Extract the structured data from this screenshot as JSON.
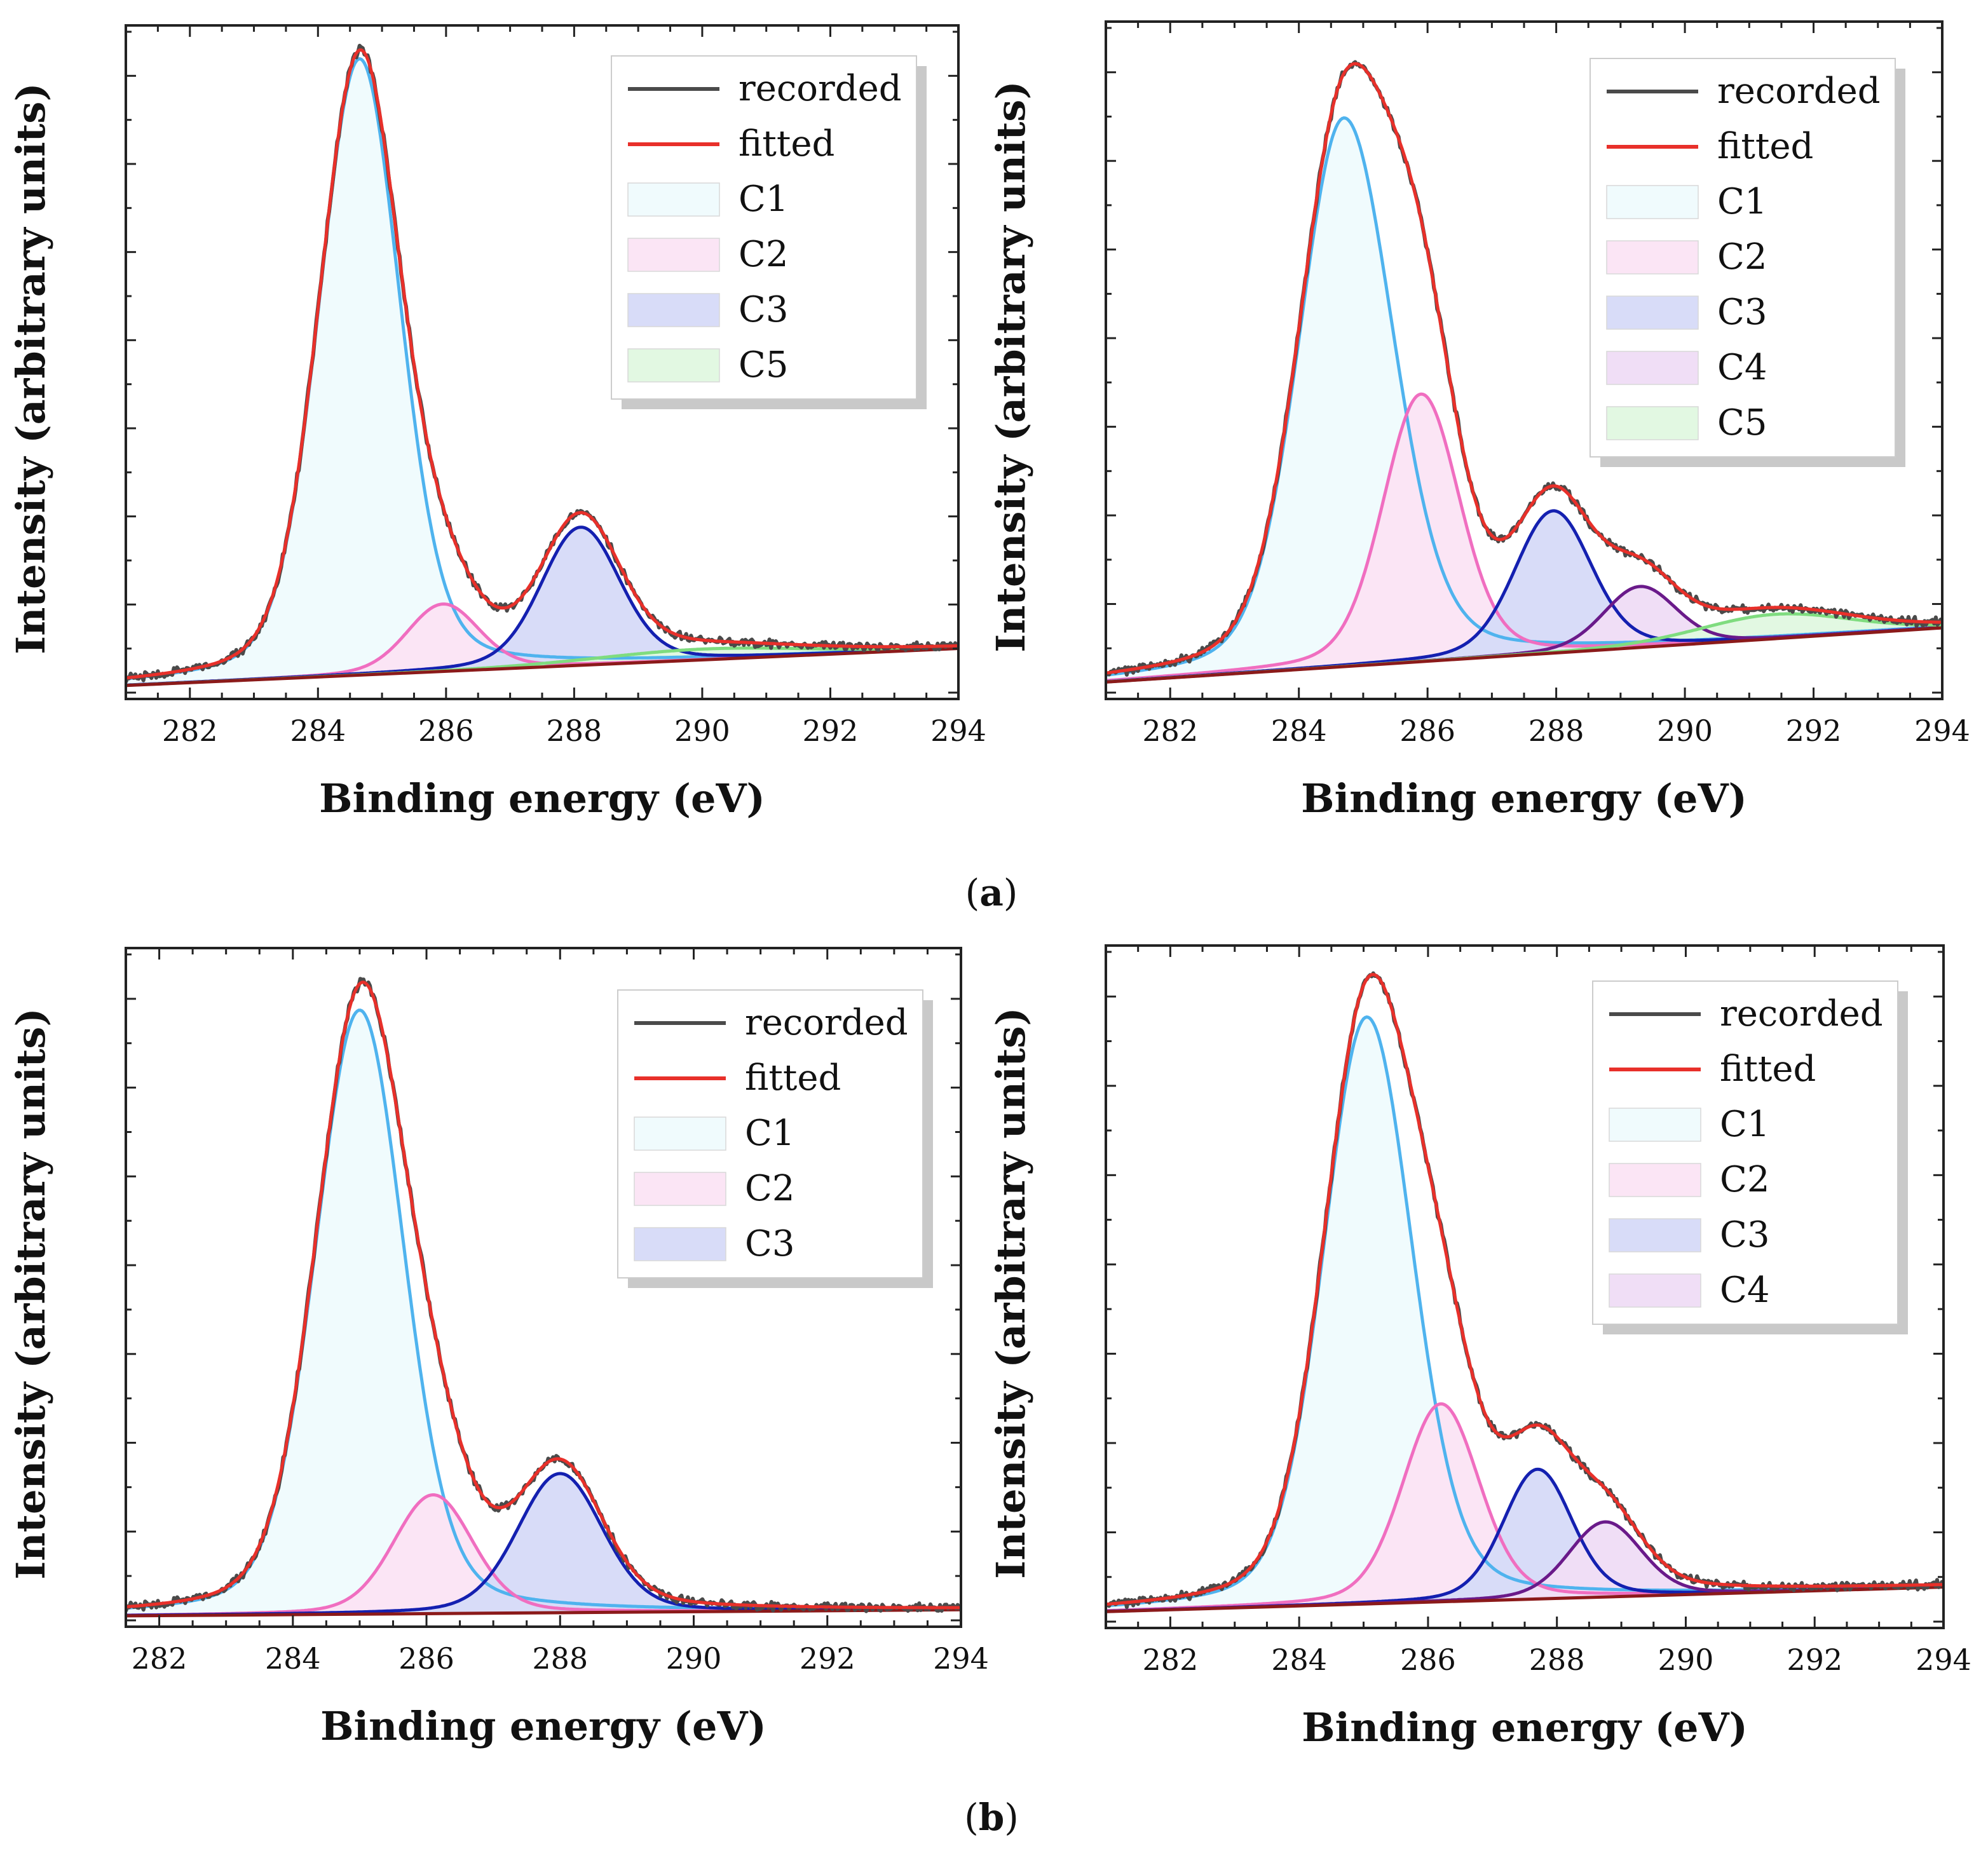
{
  "figure": {
    "caption_a": "a",
    "caption_b": "b"
  },
  "colors": {
    "recorded": "#4a4a4a",
    "fitted": "#e8302a",
    "baseline": "#8b1a1a",
    "C1": {
      "line": "#4fb3ee",
      "fill": "#f0fbfd"
    },
    "C2": {
      "line": "#f06ec0",
      "fill": "#fbe5f5"
    },
    "C3": {
      "line": "#1420b0",
      "fill": "#d8dcf8"
    },
    "C4": {
      "line": "#6a1a8a",
      "fill": "#f0def6"
    },
    "C5": {
      "line": "#7fdc7f",
      "fill": "#e2f8e2"
    }
  },
  "chart_data": [
    {
      "type": "line",
      "panel": "a-left",
      "xlabel": "Binding energy (eV)",
      "ylabel": "Intensity (arbitrary units)",
      "xlim": [
        281,
        294
      ],
      "ylim": [
        0,
        100
      ],
      "xticks": [
        282,
        284,
        286,
        288,
        290,
        292,
        294
      ],
      "y_minor_ticks": 15,
      "baseline": [
        [
          281,
          2.0
        ],
        [
          294,
          7.5
        ]
      ],
      "components": [
        {
          "name": "C1",
          "center": 284.65,
          "height": 91.5,
          "sigma": 0.62,
          "tail": 1.0
        },
        {
          "name": "C2",
          "center": 285.95,
          "height": 10.0,
          "sigma": 0.55,
          "tail": 1.0
        },
        {
          "name": "C3",
          "center": 288.1,
          "height": 20.5,
          "sigma": 0.6,
          "tail": 1.0
        },
        {
          "name": "C5",
          "center": 290.0,
          "height": 1.6,
          "sigma": 1.6,
          "tail": 1.0
        }
      ],
      "legend": {
        "position": "top-right",
        "entries": [
          {
            "label": "recorded",
            "kind": "line",
            "key": "recorded"
          },
          {
            "label": "fitted",
            "kind": "line",
            "key": "fitted"
          },
          {
            "label": "C1",
            "kind": "box",
            "key": "C1"
          },
          {
            "label": "C2",
            "kind": "box",
            "key": "C2"
          },
          {
            "label": "C3",
            "kind": "box",
            "key": "C3"
          },
          {
            "label": "C5",
            "kind": "box",
            "key": "C5"
          }
        ]
      }
    },
    {
      "type": "line",
      "panel": "a-right",
      "xlabel": "Binding energy (eV)",
      "ylabel": "Intensity (arbitrary units)",
      "xlim": [
        281,
        294
      ],
      "ylim": [
        0,
        100
      ],
      "xticks": [
        282,
        284,
        286,
        288,
        290,
        292,
        294
      ],
      "y_minor_ticks": 15,
      "baseline": [
        [
          281,
          2.5
        ],
        [
          294,
          10.5
        ]
      ],
      "components": [
        {
          "name": "C1",
          "center": 284.7,
          "height": 81.0,
          "sigma": 0.68,
          "tail": 1.1
        },
        {
          "name": "C2",
          "center": 285.9,
          "height": 39.5,
          "sigma": 0.58,
          "tail": 1.0
        },
        {
          "name": "C3",
          "center": 287.95,
          "height": 21.0,
          "sigma": 0.58,
          "tail": 1.0
        },
        {
          "name": "C4",
          "center": 289.3,
          "height": 9.0,
          "sigma": 0.55,
          "tail": 1.0
        },
        {
          "name": "C5",
          "center": 291.4,
          "height": 3.6,
          "sigma": 1.15,
          "tail": 1.0
        }
      ],
      "legend": {
        "position": "top-right",
        "entries": [
          {
            "label": "recorded",
            "kind": "line",
            "key": "recorded"
          },
          {
            "label": "fitted",
            "kind": "line",
            "key": "fitted"
          },
          {
            "label": "C1",
            "kind": "box",
            "key": "C1"
          },
          {
            "label": "C2",
            "kind": "box",
            "key": "C2"
          },
          {
            "label": "C3",
            "kind": "box",
            "key": "C3"
          },
          {
            "label": "C4",
            "kind": "box",
            "key": "C4"
          },
          {
            "label": "C5",
            "kind": "box",
            "key": "C5"
          }
        ]
      }
    },
    {
      "type": "line",
      "panel": "b-left",
      "xlabel": "Binding energy (eV)",
      "ylabel": "Intensity (arbitrary units)",
      "xlim": [
        281.5,
        294
      ],
      "ylim": [
        0,
        100
      ],
      "xticks": [
        282,
        284,
        286,
        288,
        290,
        292,
        294
      ],
      "y_minor_ticks": 15,
      "baseline": [
        [
          281.5,
          1.6
        ],
        [
          294,
          2.5
        ]
      ],
      "components": [
        {
          "name": "C1",
          "center": 285.0,
          "height": 89.0,
          "sigma": 0.65,
          "tail": 1.0
        },
        {
          "name": "C2",
          "center": 286.1,
          "height": 17.5,
          "sigma": 0.58,
          "tail": 1.0
        },
        {
          "name": "C3",
          "center": 288.0,
          "height": 20.5,
          "sigma": 0.62,
          "tail": 1.0
        }
      ],
      "legend": {
        "position": "top-right",
        "entries": [
          {
            "label": "recorded",
            "kind": "line",
            "key": "recorded"
          },
          {
            "label": "fitted",
            "kind": "line",
            "key": "fitted"
          },
          {
            "label": "C1",
            "kind": "box",
            "key": "C1"
          },
          {
            "label": "C2",
            "kind": "box",
            "key": "C2"
          },
          {
            "label": "C3",
            "kind": "box",
            "key": "C3"
          }
        ]
      }
    },
    {
      "type": "line",
      "panel": "b-right",
      "xlabel": "Binding energy (eV)",
      "ylabel": "Intensity (arbitrary units)",
      "xlim": [
        281,
        294
      ],
      "ylim": [
        0,
        100
      ],
      "xticks": [
        282,
        284,
        286,
        288,
        290,
        292,
        294
      ],
      "y_minor_ticks": 15,
      "baseline": [
        [
          281,
          2.4
        ],
        [
          294,
          6.0
        ]
      ],
      "components": [
        {
          "name": "C1",
          "center": 285.05,
          "height": 86.0,
          "sigma": 0.66,
          "tail": 1.05
        },
        {
          "name": "C2",
          "center": 286.2,
          "height": 29.0,
          "sigma": 0.58,
          "tail": 1.0
        },
        {
          "name": "C3",
          "center": 287.7,
          "height": 19.0,
          "sigma": 0.52,
          "tail": 1.0
        },
        {
          "name": "C4",
          "center": 288.75,
          "height": 11.0,
          "sigma": 0.55,
          "tail": 1.0
        }
      ],
      "legend": {
        "position": "top-right",
        "entries": [
          {
            "label": "recorded",
            "kind": "line",
            "key": "recorded"
          },
          {
            "label": "fitted",
            "kind": "line",
            "key": "fitted"
          },
          {
            "label": "C1",
            "kind": "box",
            "key": "C1"
          },
          {
            "label": "C2",
            "kind": "box",
            "key": "C2"
          },
          {
            "label": "C3",
            "kind": "box",
            "key": "C3"
          },
          {
            "label": "C4",
            "kind": "box",
            "key": "C4"
          }
        ]
      }
    }
  ]
}
